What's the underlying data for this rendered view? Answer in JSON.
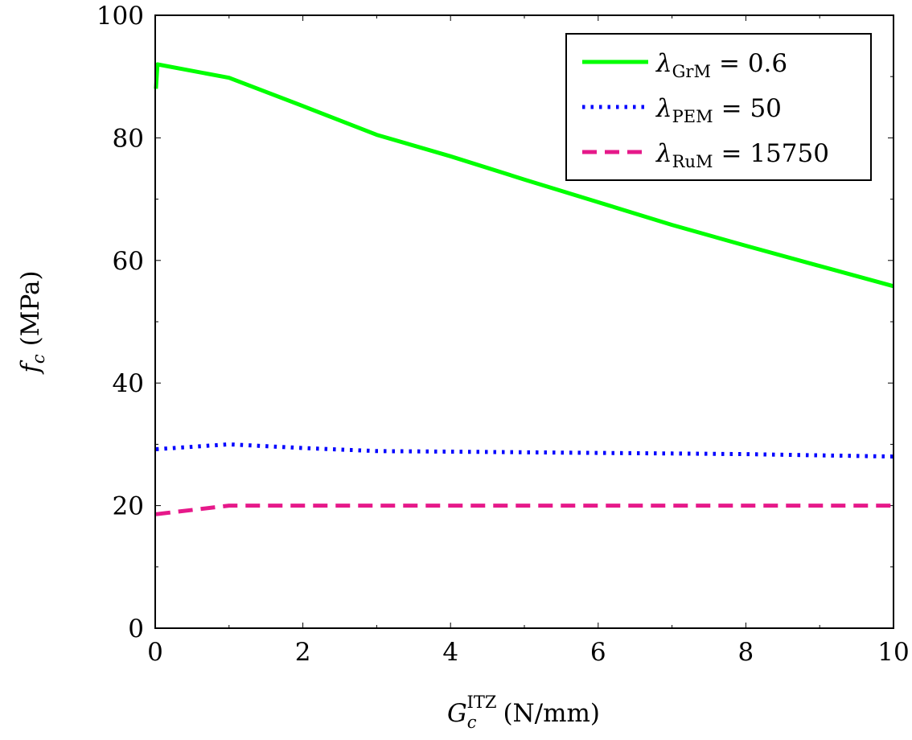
{
  "chart_data": {
    "type": "line",
    "title": "",
    "xlabel": {
      "symbol": "G",
      "sub": "c",
      "sup": "ITZ",
      "unit": "(N/mm)"
    },
    "ylabel": {
      "symbol": "f",
      "sub": "c",
      "unit": "(MPa)"
    },
    "xlim": [
      0,
      10
    ],
    "ylim": [
      0,
      100
    ],
    "x_ticks": [
      "0",
      "2",
      "4",
      "6",
      "8",
      "10"
    ],
    "y_ticks": [
      "0",
      "20",
      "40",
      "60",
      "80",
      "100"
    ],
    "x_tick_values": [
      0,
      2,
      4,
      6,
      8,
      10
    ],
    "y_tick_values": [
      0,
      20,
      40,
      60,
      80,
      100
    ],
    "x_minor_tick_values": [
      1,
      3,
      5,
      7,
      9
    ],
    "y_minor_tick_values": [
      10,
      30,
      50,
      70,
      90
    ],
    "grid": false,
    "legend_position": "top-right",
    "series": [
      {
        "name": "λGrM = 0.6",
        "lambda_sub": "GrM",
        "value_text": "= 0.6",
        "color": "#00ff00",
        "style": "solid",
        "x": [
          0.01,
          0.03,
          1,
          2,
          3,
          4,
          5,
          6,
          7,
          8,
          9,
          10
        ],
        "y": [
          88,
          92,
          89.8,
          85.2,
          80.5,
          77,
          73.2,
          69.5,
          65.8,
          62.4,
          59.1,
          55.8
        ]
      },
      {
        "name": "λPEM = 50",
        "lambda_sub": "PEM",
        "value_text": "= 50",
        "color": "#0000ff",
        "style": "dotted",
        "x": [
          0.01,
          1,
          2,
          3,
          4,
          5,
          6,
          7,
          8,
          9,
          10
        ],
        "y": [
          29.2,
          30,
          29.4,
          28.9,
          28.8,
          28.7,
          28.6,
          28.5,
          28.4,
          28.2,
          28
        ]
      },
      {
        "name": "λRuM = 15750",
        "lambda_sub": "RuM",
        "value_text": "= 15750",
        "color": "#e6198a",
        "style": "dashed",
        "x": [
          0.01,
          1,
          2,
          3,
          4,
          5,
          6,
          7,
          8,
          9,
          10
        ],
        "y": [
          18.6,
          20,
          20,
          20,
          20,
          20,
          20,
          20,
          20,
          20,
          20
        ]
      }
    ]
  }
}
